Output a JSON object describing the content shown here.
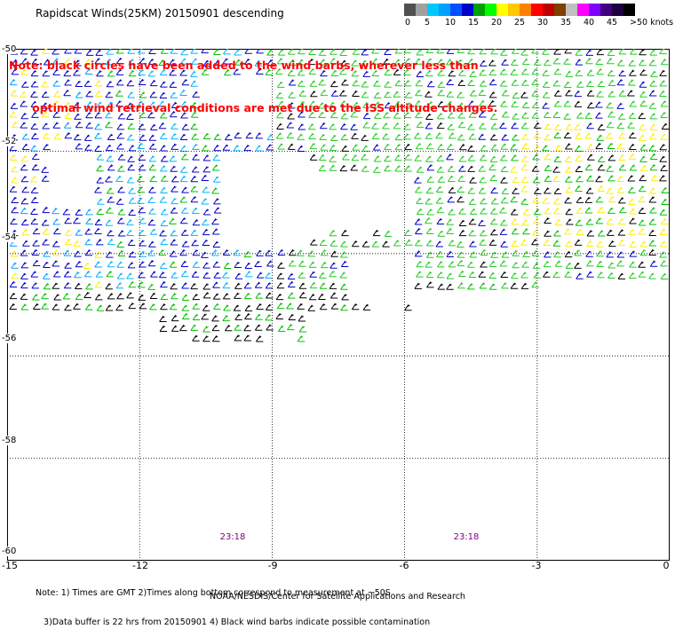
{
  "title": "Rapidscat Winds(25KM) 20150901 descending",
  "note_lines": [
    "Note: black circles have been added to the wind barbs, wherever less than",
    "      optimal wind retrieval conditions are met due to the ISS altitude changes."
  ],
  "colorbar": {
    "labels": [
      "0",
      "5",
      "10",
      "15",
      "20",
      "25",
      "30",
      "35",
      "40",
      "45",
      ">50 knots"
    ],
    "colors": [
      "#505050",
      "#a0a0a0",
      "#00c8ff",
      "#00a0ff",
      "#0050ff",
      "#0000c8",
      "#00a000",
      "#00ff00",
      "#ffff00",
      "#ffc800",
      "#ff8000",
      "#ff0000",
      "#c00000",
      "#804000",
      "#c0c0c0",
      "#ff00ff",
      "#8000ff",
      "#400080",
      "#200040",
      "#000000"
    ]
  },
  "map": {
    "lon_range": [
      -15,
      0
    ],
    "lat_range": [
      -60,
      -50
    ],
    "x_ticks": [
      "-15",
      "-12",
      "-9",
      "-6",
      "-3",
      "0"
    ],
    "y_ticks": [
      "-50",
      "-52",
      "-54",
      "-56",
      "-58",
      "-60"
    ],
    "pass_times": [
      "23:18",
      "23:18"
    ]
  },
  "footnote_lines": [
    "Note: 1) Times are GMT 2)Times along bottom correspond to measurement at ~50S",
    "   3)Data buffer is 22 hrs from 20150901 4) Black wind barbs indicate possible contamination"
  ],
  "credit": "NOAA/NESDIS/Center for Satellite Applications and Research"
}
